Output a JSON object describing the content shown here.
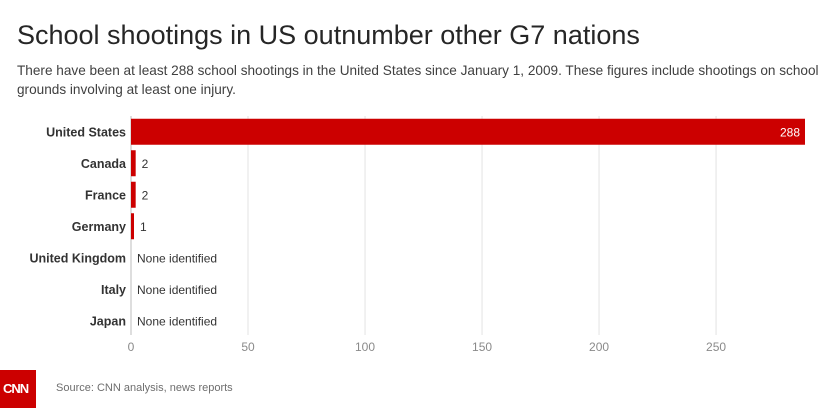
{
  "title": "School shootings in US outnumber other G7 nations",
  "subtitle": "There have been at least 288 school shootings in the United States since January 1, 2009. These figures include shootings on school grounds involving at least one injury.",
  "source": "Source: CNN analysis, news reports",
  "logo_text": "CNN",
  "colors": {
    "bar": "#cc0000",
    "grid": "#e3e3e3",
    "brand": "#cc0000"
  },
  "chart_data": {
    "type": "bar",
    "orientation": "horizontal",
    "categories": [
      "United States",
      "Canada",
      "France",
      "Germany",
      "United Kingdom",
      "Italy",
      "Japan"
    ],
    "values": [
      288,
      2,
      2,
      1,
      null,
      null,
      null
    ],
    "data_labels": [
      "288",
      "2",
      "2",
      "1",
      "None identified",
      "None identified",
      "None identified"
    ],
    "xlim": [
      0,
      288
    ],
    "xticks": [
      0,
      50,
      100,
      150,
      200,
      250
    ],
    "grid": true
  }
}
